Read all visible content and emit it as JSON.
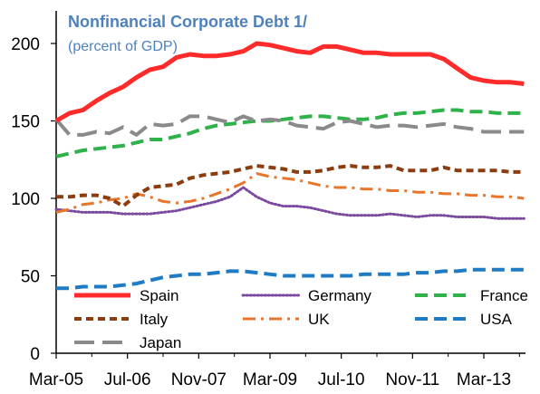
{
  "chart_data": {
    "type": "line",
    "title": "Nonfinancial Corporate Debt 1/",
    "subtitle": "(percent of GDP)",
    "xlabel": "",
    "ylabel": "",
    "ylim": [
      0,
      210
    ],
    "yticks": [
      0,
      50,
      100,
      150,
      200
    ],
    "x_tick_labels": [
      "Mar-05",
      "Jul-06",
      "Nov-07",
      "Mar-09",
      "Jul-10",
      "Nov-11",
      "Mar-13"
    ],
    "x_tick_index": [
      0,
      16,
      32,
      48,
      64,
      80,
      96
    ],
    "x": [
      "Mar-05",
      "Jun-05",
      "Sep-05",
      "Dec-05",
      "Mar-06",
      "Jun-06",
      "Sep-06",
      "Dec-06",
      "Mar-07",
      "Jun-07",
      "Sep-07",
      "Dec-07",
      "Mar-08",
      "Jun-08",
      "Sep-08",
      "Dec-08",
      "Mar-09",
      "Jun-09",
      "Sep-09",
      "Dec-09",
      "Mar-10",
      "Jun-10",
      "Sep-10",
      "Dec-10",
      "Mar-11",
      "Jun-11",
      "Sep-11",
      "Dec-11",
      "Mar-12",
      "Jun-12",
      "Sep-12",
      "Dec-12",
      "Mar-13",
      "Jun-13",
      "Sep-13",
      "Dec-13"
    ],
    "grid": false,
    "legend_position": "bottom-inside",
    "series": [
      {
        "name": "Spain",
        "color": "#ff2a2a",
        "dash": "solid",
        "width": 5,
        "values": [
          150,
          155,
          157,
          163,
          168,
          172,
          178,
          183,
          185,
          191,
          193,
          192,
          192,
          193,
          195,
          200,
          199,
          197,
          195,
          194,
          198,
          198,
          196,
          194,
          194,
          193,
          193,
          193,
          193,
          190,
          184,
          178,
          176,
          175,
          175,
          174
        ]
      },
      {
        "name": "Germany",
        "color": "#7b4aa0",
        "dash": "dotted",
        "width": 3,
        "values": [
          93,
          92,
          91,
          91,
          91,
          90,
          90,
          90,
          91,
          92,
          94,
          96,
          98,
          101,
          107,
          101,
          97,
          95,
          95,
          94,
          92,
          90,
          89,
          89,
          89,
          90,
          89,
          88,
          89,
          89,
          88,
          88,
          88,
          87,
          87,
          87
        ]
      },
      {
        "name": "France",
        "color": "#2fb24a",
        "dash": "dashed",
        "width": 4,
        "values": [
          127,
          129,
          131,
          132,
          133,
          134,
          136,
          138,
          138,
          140,
          142,
          145,
          147,
          148,
          149,
          150,
          150,
          151,
          152,
          153,
          153,
          152,
          151,
          151,
          152,
          154,
          155,
          155,
          156,
          157,
          157,
          156,
          156,
          155,
          155,
          155
        ]
      },
      {
        "name": "Italy",
        "color": "#8b3d10",
        "dash": "dashed-short",
        "width": 4,
        "values": [
          101,
          101,
          102,
          102,
          100,
          95,
          102,
          107,
          108,
          109,
          113,
          115,
          116,
          117,
          119,
          121,
          120,
          119,
          117,
          117,
          118,
          120,
          121,
          120,
          120,
          121,
          118,
          118,
          118,
          120,
          118,
          118,
          118,
          118,
          117,
          117
        ]
      },
      {
        "name": "UK",
        "color": "#e8752a",
        "dash": "dashdot",
        "width": 3,
        "values": [
          91,
          93,
          96,
          97,
          99,
          100,
          103,
          101,
          98,
          97,
          98,
          100,
          103,
          106,
          110,
          116,
          114,
          113,
          112,
          110,
          108,
          107,
          107,
          106,
          106,
          105,
          105,
          104,
          104,
          103,
          103,
          102,
          102,
          101,
          101,
          100
        ]
      },
      {
        "name": "USA",
        "color": "#1f7bc4",
        "dash": "dashed",
        "width": 4,
        "values": [
          42,
          42,
          43,
          43,
          43,
          44,
          45,
          47,
          49,
          50,
          51,
          51,
          52,
          53,
          53,
          52,
          51,
          50,
          50,
          50,
          50,
          50,
          50,
          51,
          51,
          51,
          51,
          52,
          52,
          53,
          53,
          54,
          54,
          54,
          54,
          54
        ]
      },
      {
        "name": "Japan",
        "color": "#8a8a8a",
        "dash": "long-dash",
        "width": 4,
        "values": [
          151,
          141,
          141,
          143,
          142,
          146,
          141,
          148,
          147,
          148,
          153,
          153,
          151,
          149,
          153,
          150,
          151,
          150,
          147,
          146,
          145,
          149,
          150,
          148,
          146,
          147,
          147,
          146,
          147,
          148,
          146,
          145,
          143,
          143,
          143,
          143
        ]
      }
    ],
    "legend": [
      [
        "Spain",
        "Germany",
        "France"
      ],
      [
        "Italy",
        "UK",
        "USA"
      ],
      [
        "Japan"
      ]
    ]
  }
}
